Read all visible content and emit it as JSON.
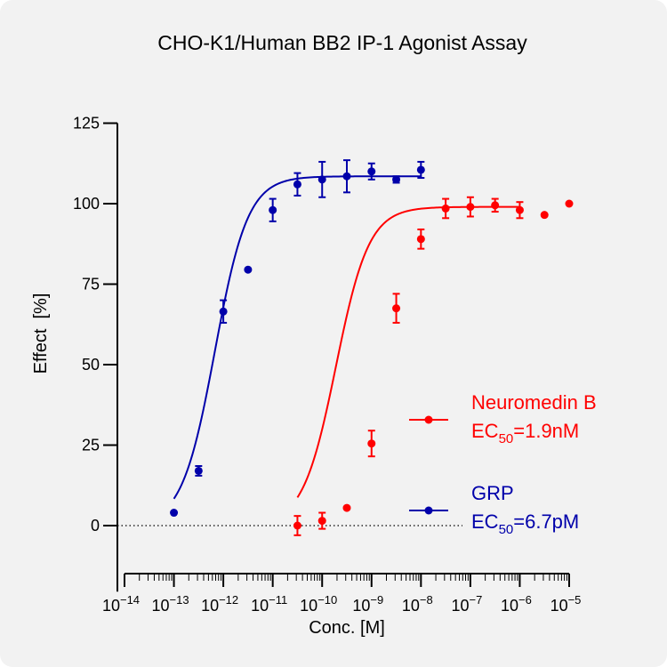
{
  "chart_data": {
    "type": "scatter",
    "title": "CHO-K1/Human BB2 IP-1 Agonist Assay",
    "xlabel": "Conc. [M]",
    "ylabel": "Effect  [%]",
    "x_scale": "log",
    "xlim_log10": [
      -14,
      -5
    ],
    "ylim": [
      -10,
      125
    ],
    "y_ticks": [
      0,
      25,
      50,
      75,
      100,
      125
    ],
    "x_ticks_log10": [
      -14,
      -13,
      -12,
      -11,
      -10,
      -9,
      -8,
      -7,
      -6,
      -5
    ],
    "x_tick_base": "10",
    "grid": false,
    "baseline": 0,
    "legend_position": "right",
    "series": [
      {
        "name": "Neuromedin B",
        "ec50_label_prefix": "EC",
        "ec50_label_sub": "50",
        "ec50_label_value": "=1.9nM",
        "color": "#ff0000",
        "fit": {
          "bottom": 0,
          "top": 99,
          "log_ec50": -8.72,
          "hill": 1.3,
          "x_range_log10": [
            -9.5,
            -5
          ]
        },
        "points": [
          {
            "x_log10": -9.5,
            "y": 0,
            "err": 3
          },
          {
            "x_log10": -9.0,
            "y": 1.5,
            "err": 2.5
          },
          {
            "x_log10": -8.5,
            "y": 5.5,
            "err": 0
          },
          {
            "x_log10": -8.0,
            "y": 25.5,
            "err": 4
          },
          {
            "x_log10": -7.5,
            "y": 67.5,
            "err": 4.5
          },
          {
            "x_log10": -7.0,
            "y": 89,
            "err": 3
          },
          {
            "x_log10": -6.5,
            "y": 98.5,
            "err": 3
          },
          {
            "x_log10": -6.0,
            "y": 99,
            "err": 3
          },
          {
            "x_log10": -5.5,
            "y": 99.5,
            "err": 2
          },
          {
            "x_log10": -5.0,
            "y": 98,
            "err": 2.5
          },
          {
            "x_log10": -4.5,
            "y": 96.5,
            "err": 0
          },
          {
            "x_log10": -4.0,
            "y": 100,
            "err": 0
          }
        ]
      },
      {
        "name": "GRP",
        "ec50_label_prefix": "EC",
        "ec50_label_sub": "50",
        "ec50_label_value": "=6.7pM",
        "color": "#0000aa",
        "fit": {
          "bottom": 0,
          "top": 108.5,
          "log_ec50": -11.17,
          "hill": 1.3,
          "x_range_log10": [
            -12,
            -7
          ]
        },
        "points": [
          {
            "x_log10": -12.0,
            "y": 4,
            "err": 0
          },
          {
            "x_log10": -11.5,
            "y": 17,
            "err": 1.5
          },
          {
            "x_log10": -11.0,
            "y": 66.5,
            "err": 3.5
          },
          {
            "x_log10": -10.5,
            "y": 79.5,
            "err": 0
          },
          {
            "x_log10": -10.0,
            "y": 98,
            "err": 3.5
          },
          {
            "x_log10": -9.5,
            "y": 106,
            "err": 3.5
          },
          {
            "x_log10": -9.0,
            "y": 107.5,
            "err": 5.5
          },
          {
            "x_log10": -8.5,
            "y": 108.5,
            "err": 5
          },
          {
            "x_log10": -8.0,
            "y": 110,
            "err": 2.5
          },
          {
            "x_log10": -7.5,
            "y": 107.5,
            "err": 1
          },
          {
            "x_log10": -7.0,
            "y": 110.5,
            "err": 2.5
          }
        ]
      }
    ]
  }
}
